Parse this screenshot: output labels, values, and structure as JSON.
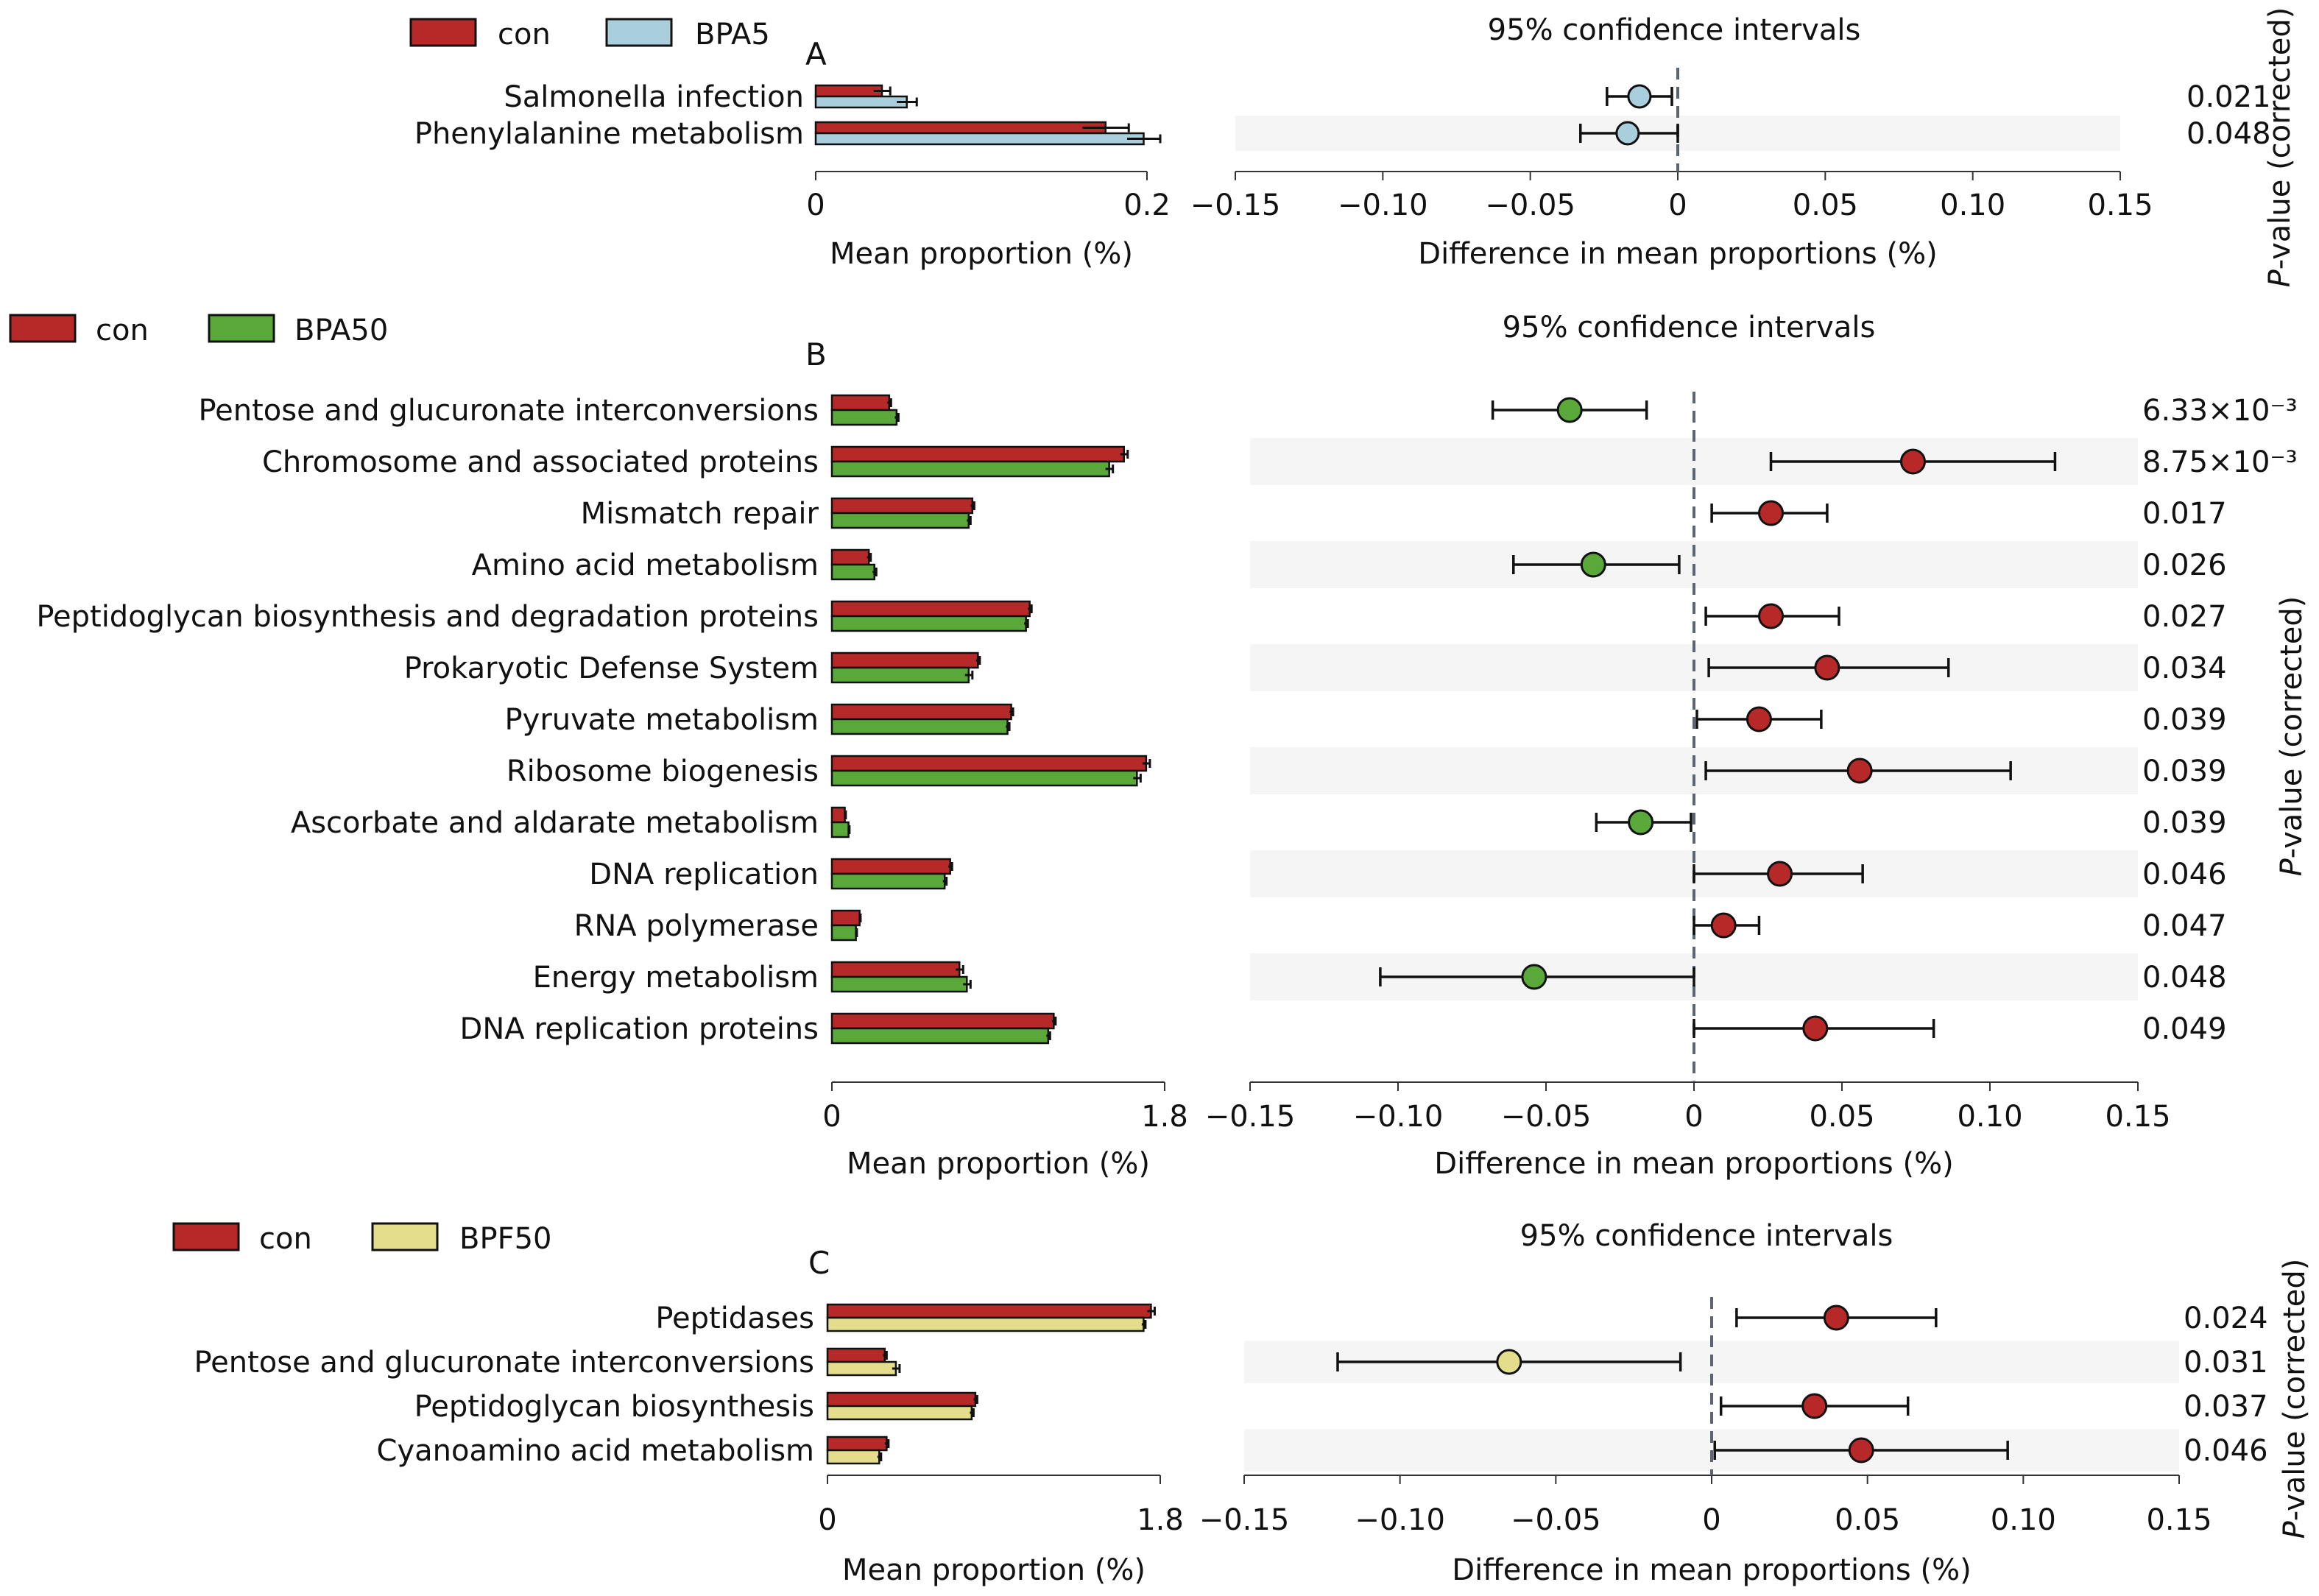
{
  "colors": {
    "con": "#b72828",
    "BPA5": "#a9cedc",
    "BPA50": "#5ba83a",
    "BPF50": "#e3dd8c",
    "dashed": "#5a6472"
  },
  "chart_data": [
    {
      "panel": "A",
      "type": "bar",
      "legend": [
        "con",
        "BPA5"
      ],
      "categories": [
        "Salmonella infection",
        "Phenylalanine metabolism"
      ],
      "series": [
        {
          "name": "con",
          "values": [
            0.04,
            0.175
          ],
          "errors": [
            0.005,
            0.014
          ]
        },
        {
          "name": "BPA5",
          "values": [
            0.055,
            0.198
          ],
          "errors": [
            0.006,
            0.01
          ]
        }
      ],
      "bar_xlabel": "Mean proportion (%)",
      "bar_xlim": [
        0,
        0.2
      ],
      "bar_ticks": [
        "0",
        "0.2"
      ],
      "ci_title": "95% confidence intervals",
      "ci_xlabel": "Difference in mean proportions (%)",
      "ci_xlim": [
        -0.15,
        0.15
      ],
      "ci_ticks": [
        "−0.15",
        "−0.10",
        "−0.05",
        "0",
        "0.05",
        "0.10",
        "0.15"
      ],
      "differences": [
        -0.013,
        -0.017
      ],
      "ci_low": [
        -0.024,
        -0.033
      ],
      "ci_high": [
        -0.002,
        0.0
      ],
      "point_group": [
        "BPA5",
        "BPA5"
      ],
      "p_values": [
        "0.021",
        "0.048"
      ],
      "p_label": "P-value (corrected)"
    },
    {
      "panel": "B",
      "type": "bar",
      "legend": [
        "con",
        "BPA50"
      ],
      "categories": [
        "Pentose and glucuronate interconversions",
        "Chromosome and associated proteins",
        "Mismatch repair",
        "Amino acid metabolism",
        "Peptidoglycan biosynthesis and degradation proteins",
        "Prokaryotic Defense System",
        "Pyruvate metabolism",
        "Ribosome biogenesis",
        "Ascorbate and aldarate metabolism",
        "DNA replication",
        "RNA polymerase",
        "Energy metabolism",
        "DNA replication proteins"
      ],
      "series": [
        {
          "name": "con",
          "values": [
            0.31,
            1.58,
            0.76,
            0.2,
            1.07,
            0.79,
            0.97,
            1.7,
            0.07,
            0.64,
            0.15,
            0.69,
            1.2
          ],
          "errors": [
            0.01,
            0.02,
            0.01,
            0.01,
            0.01,
            0.01,
            0.01,
            0.02,
            0.005,
            0.01,
            0.005,
            0.02,
            0.01
          ]
        },
        {
          "name": "BPA50",
          "values": [
            0.35,
            1.5,
            0.74,
            0.23,
            1.05,
            0.74,
            0.95,
            1.65,
            0.09,
            0.61,
            0.13,
            0.73,
            1.17
          ],
          "errors": [
            0.01,
            0.02,
            0.01,
            0.01,
            0.01,
            0.02,
            0.01,
            0.02,
            0.005,
            0.01,
            0.005,
            0.02,
            0.01
          ]
        }
      ],
      "bar_xlabel": "Mean proportion (%)",
      "bar_xlim": [
        0,
        1.8
      ],
      "bar_ticks": [
        "0",
        "1.8"
      ],
      "ci_title": "95% confidence intervals",
      "ci_xlabel": "Difference in mean proportions (%)",
      "ci_xlim": [
        -0.15,
        0.15
      ],
      "ci_ticks": [
        "−0.15",
        "−0.10",
        "−0.05",
        "0",
        "0.05",
        "0.10",
        "0.15"
      ],
      "differences": [
        -0.042,
        0.074,
        0.026,
        -0.034,
        0.026,
        0.045,
        0.022,
        0.056,
        -0.018,
        0.029,
        0.01,
        -0.054,
        0.041
      ],
      "ci_low": [
        -0.068,
        0.026,
        0.006,
        -0.061,
        0.004,
        0.005,
        0.001,
        0.004,
        -0.033,
        0.0,
        0.0,
        -0.106,
        0.0
      ],
      "ci_high": [
        -0.016,
        0.122,
        0.045,
        -0.005,
        0.049,
        0.086,
        0.043,
        0.107,
        -0.001,
        0.057,
        0.022,
        0.0,
        0.081
      ],
      "point_group": [
        "BPA50",
        "con",
        "con",
        "BPA50",
        "con",
        "con",
        "con",
        "con",
        "BPA50",
        "con",
        "con",
        "BPA50",
        "con"
      ],
      "p_values": [
        "6.33×10⁻³",
        "8.75×10⁻³",
        "0.017",
        "0.026",
        "0.027",
        "0.034",
        "0.039",
        "0.039",
        "0.039",
        "0.046",
        "0.047",
        "0.048",
        "0.049"
      ],
      "p_label": "P-value (corrected)"
    },
    {
      "panel": "C",
      "type": "bar",
      "legend": [
        "con",
        "BPF50"
      ],
      "categories": [
        "Peptidases",
        "Pentose and glucuronate interconversions",
        "Peptidoglycan biosynthesis",
        "Cyanoamino acid metabolism"
      ],
      "series": [
        {
          "name": "con",
          "values": [
            1.75,
            0.31,
            0.8,
            0.32
          ],
          "errors": [
            0.02,
            0.01,
            0.01,
            0.01
          ]
        },
        {
          "name": "BPF50",
          "values": [
            1.71,
            0.37,
            0.78,
            0.28
          ],
          "errors": [
            0.01,
            0.02,
            0.01,
            0.01
          ]
        }
      ],
      "bar_xlabel": "Mean proportion (%)",
      "bar_xlim": [
        0,
        1.8
      ],
      "bar_ticks": [
        "0",
        "1.8"
      ],
      "ci_title": "95% confidence intervals",
      "ci_xlabel": "Difference in mean proportions (%)",
      "ci_xlim": [
        -0.15,
        0.15
      ],
      "ci_ticks": [
        "−0.15",
        "−0.10",
        "−0.05",
        "0",
        "0.05",
        "0.10",
        "0.15"
      ],
      "differences": [
        0.04,
        -0.065,
        0.033,
        0.048
      ],
      "ci_low": [
        0.008,
        -0.12,
        0.003,
        0.001
      ],
      "ci_high": [
        0.072,
        -0.01,
        0.063,
        0.095
      ],
      "point_group": [
        "con",
        "BPF50",
        "con",
        "con"
      ],
      "p_values": [
        "0.024",
        "0.031",
        "0.037",
        "0.046"
      ],
      "p_label": "P-value (corrected)"
    }
  ]
}
